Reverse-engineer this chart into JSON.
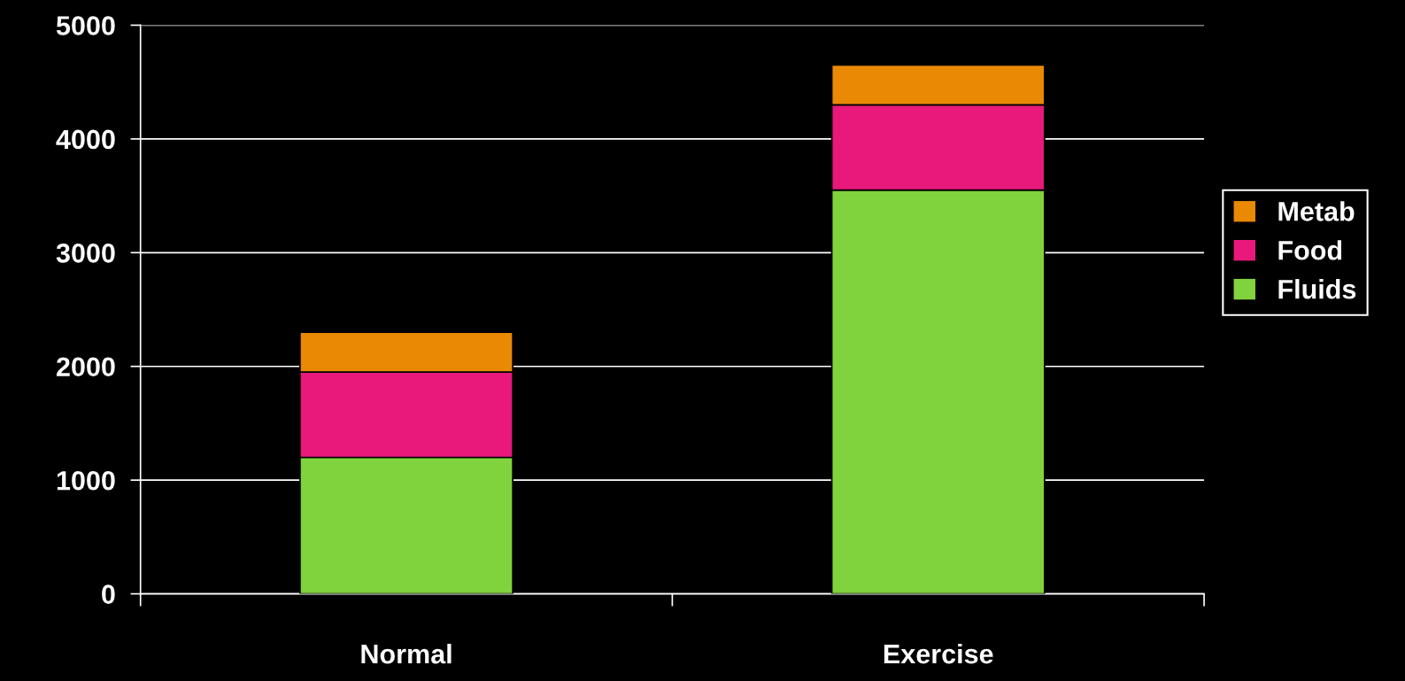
{
  "chart_data": {
    "type": "bar",
    "stacked": true,
    "categories": [
      "Normal",
      "Exercise"
    ],
    "series": [
      {
        "name": "Fluids",
        "color": "#80d33c",
        "values": [
          1200,
          3550
        ]
      },
      {
        "name": "Food",
        "color": "#e8197a",
        "values": [
          750,
          750
        ]
      },
      {
        "name": "Metab",
        "color": "#e98904",
        "values": [
          350,
          350
        ]
      }
    ],
    "ylim": [
      0,
      5000
    ],
    "yticks": [
      0,
      1000,
      2000,
      3000,
      4000,
      5000
    ],
    "grid": "y",
    "legend": "right"
  }
}
